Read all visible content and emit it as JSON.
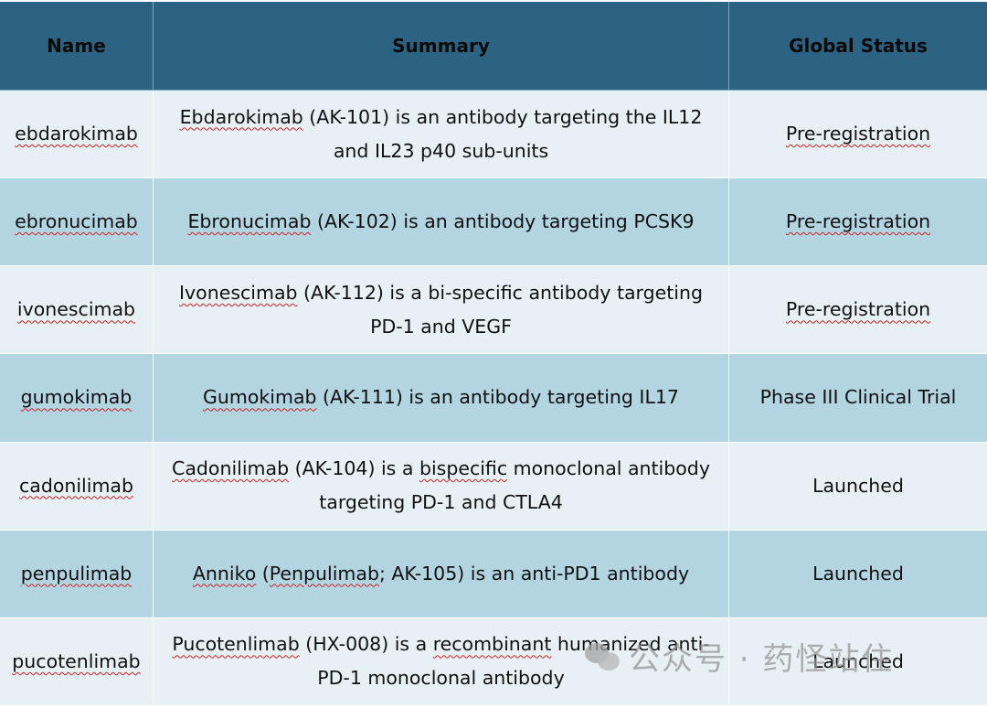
{
  "table": {
    "headers": [
      "Name",
      "Summary",
      "Global Status"
    ],
    "rows": [
      {
        "name": "ebdarokimab",
        "summary_parts": [
          {
            "t": "Ebdarokimab",
            "sq": true
          },
          {
            "t": " (AK-101) is an antibody targeting the IL12 and IL23 p40 sub-units",
            "sq": false
          }
        ],
        "status": "Pre-registration",
        "status_sq": true
      },
      {
        "name": "ebronucimab",
        "summary_parts": [
          {
            "t": "Ebronucimab",
            "sq": true
          },
          {
            "t": " (AK-102) is an antibody targeting PCSK9",
            "sq": false
          }
        ],
        "status": "Pre-registration",
        "status_sq": true
      },
      {
        "name": "ivonescimab",
        "summary_parts": [
          {
            "t": "Ivonescimab",
            "sq": true
          },
          {
            "t": " (AK-112) is a bi-specific antibody targeting PD-1 and VEGF",
            "sq": false
          }
        ],
        "status": "Pre-registration",
        "status_sq": true
      },
      {
        "name": "gumokimab",
        "summary_parts": [
          {
            "t": "Gumokimab",
            "sq": true
          },
          {
            "t": " (AK-111) is an antibody targeting IL17",
            "sq": false
          }
        ],
        "status": "Phase III Clinical Trial",
        "status_sq": false
      },
      {
        "name": "cadonilimab",
        "summary_parts": [
          {
            "t": "Cadonilimab",
            "sq": true
          },
          {
            "t": " (AK-104) is a ",
            "sq": false
          },
          {
            "t": "bispecific",
            "sq": true
          },
          {
            "t": " monoclonal antibody targeting PD-1 and CTLA4",
            "sq": false
          }
        ],
        "status": "Launched",
        "status_sq": false
      },
      {
        "name": "penpulimab",
        "summary_parts": [
          {
            "t": "Anniko",
            "sq": true
          },
          {
            "t": " (",
            "sq": false
          },
          {
            "t": "Penpulimab",
            "sq": true
          },
          {
            "t": "; AK-105) is an anti-PD1 antibody",
            "sq": false
          }
        ],
        "status": "Launched",
        "status_sq": false
      },
      {
        "name": "pucotenlimab",
        "summary_parts": [
          {
            "t": "Pucotenlimab",
            "sq": true
          },
          {
            "t": " (HX-008) is a ",
            "sq": false
          },
          {
            "t": "recombinant",
            "sq": true
          },
          {
            "t": " humanized anti-PD-1 monoclonal antibody",
            "sq": false
          }
        ],
        "status": "Launched",
        "status_sq": false
      }
    ]
  },
  "watermark": {
    "text": "公众号 · 药怪站住"
  }
}
